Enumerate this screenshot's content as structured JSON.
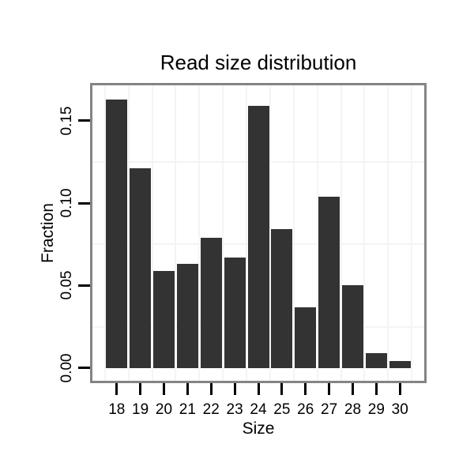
{
  "chart_data": {
    "type": "bar",
    "title": "Read size distribution",
    "xlabel": "Size",
    "ylabel": "Fraction",
    "categories": [
      18,
      19,
      20,
      21,
      22,
      23,
      24,
      25,
      26,
      27,
      28,
      29,
      30
    ],
    "values": [
      0.163,
      0.121,
      0.059,
      0.063,
      0.079,
      0.067,
      0.159,
      0.084,
      0.037,
      0.104,
      0.05,
      0.009,
      0.004
    ],
    "x_tick_labels": [
      "18",
      "19",
      "20",
      "21",
      "22",
      "23",
      "24",
      "25",
      "26",
      "27",
      "28",
      "29",
      "30"
    ],
    "y_tick_values": [
      0.0,
      0.05,
      0.1,
      0.15
    ],
    "y_tick_labels": [
      "0.00",
      "0.05",
      "0.10",
      "0.15"
    ],
    "ylim": [
      -0.0078,
      0.1714
    ],
    "xlim": [
      16.97,
      31.03
    ],
    "grid": "minor-only",
    "grid_minor_x": [
      17.5,
      18.5,
      19.5,
      20.5,
      21.5,
      22.5,
      23.5,
      24.5,
      25.5,
      26.5,
      27.5,
      28.5,
      29.5,
      30.5
    ],
    "grid_minor_y": [
      0.025,
      0.075,
      0.125
    ],
    "legend_position": "none",
    "colors": {
      "bar": "#333333",
      "panel_border": "#848484",
      "grid": "#f4f4f4",
      "tick": "#000000",
      "text": "#000000",
      "background": "#ffffff"
    }
  }
}
